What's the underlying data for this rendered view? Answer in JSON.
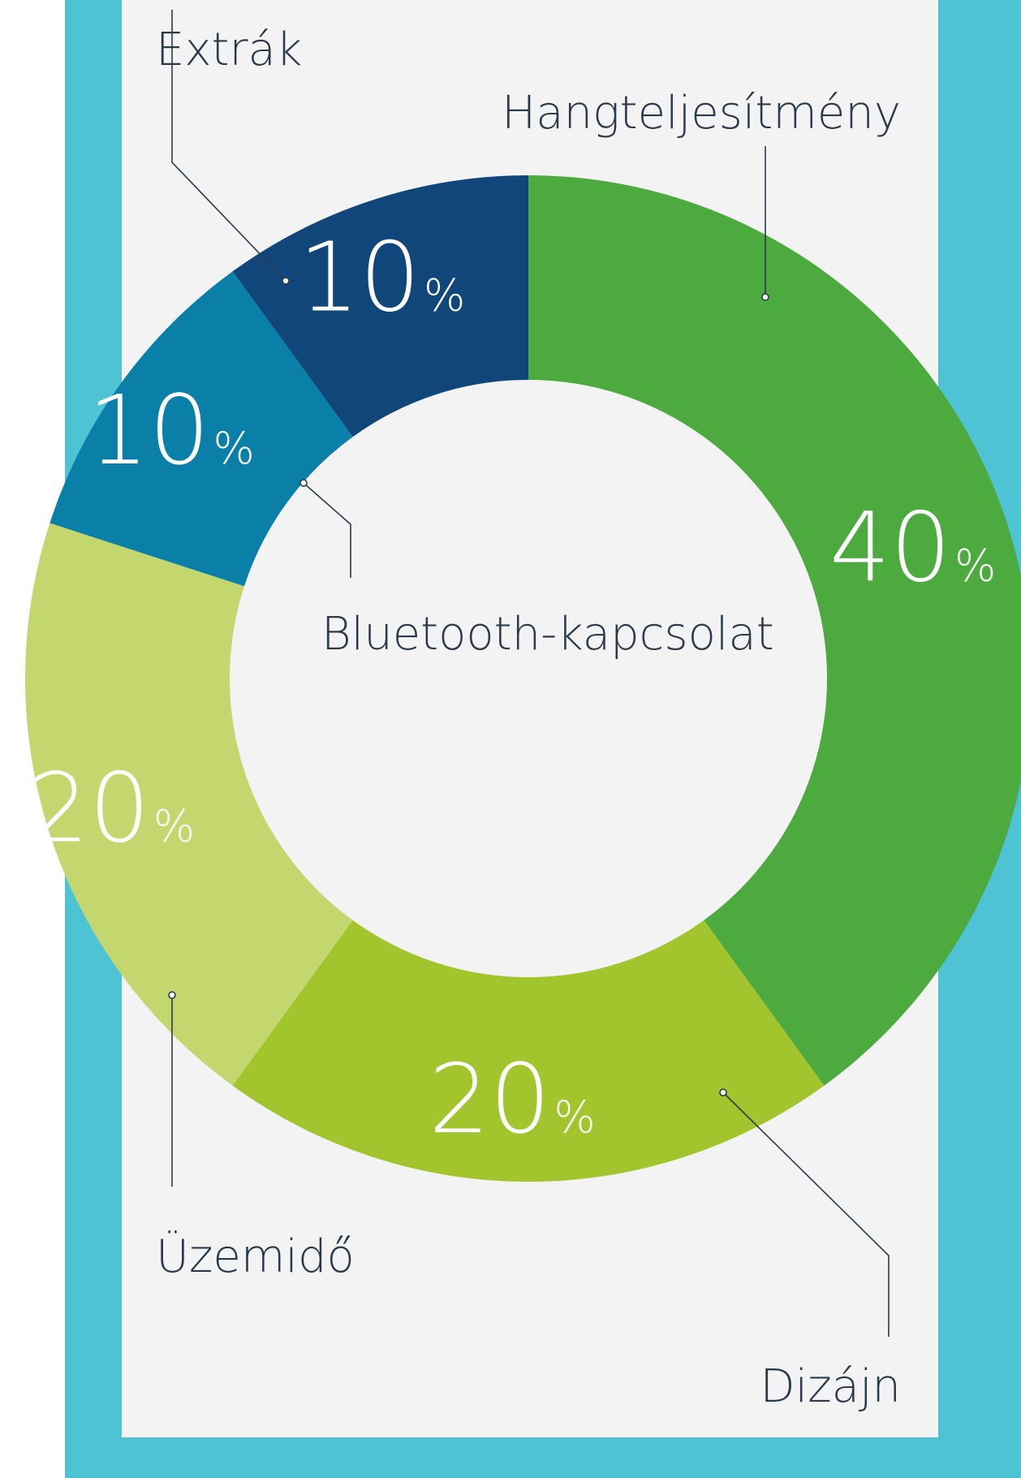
{
  "chart_data": {
    "type": "pie",
    "donut": true,
    "categories": [
      "Hangteljesítmény",
      "Dizájn",
      "Üzemidő",
      "Bluetooth-kapcsolat",
      "Extrák"
    ],
    "values": [
      40,
      20,
      20,
      10,
      10
    ],
    "value_labels": [
      "40",
      "20",
      "20",
      "10",
      "10"
    ],
    "unit": "%",
    "colors": [
      "#4daa3e",
      "#a2c42c",
      "#c4d76e",
      "#0a80a8",
      "#10467a"
    ],
    "start": "top",
    "direction": "clockwise",
    "legend": "none",
    "title": ""
  },
  "frame": {
    "color": "#4dc3d4",
    "panel_color": "#f3f3f4"
  }
}
